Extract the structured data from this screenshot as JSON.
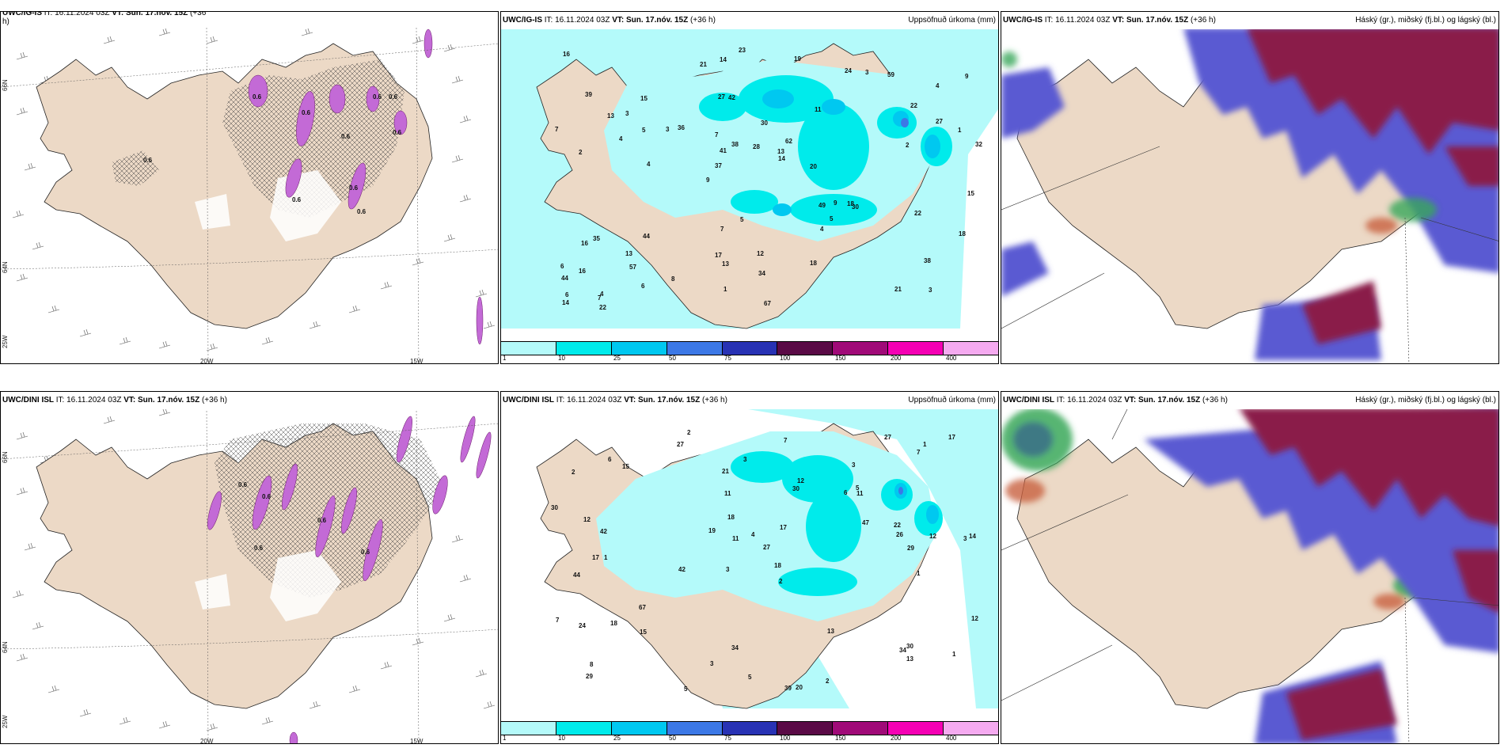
{
  "rows": [
    {
      "model": "UWC/IG-IS",
      "it_label": "IT:",
      "it_value": "16.11.2024 03Z",
      "vt_label": "VT:",
      "vt_value": "Sun. 17.nóv. 15Z",
      "lead": "(+36 h)",
      "first_header_lead": "(+36",
      "first_header_wrap": "h)"
    },
    {
      "model": "UWC/DINI ISL",
      "it_label": "IT:",
      "it_value": "16.11.2024 03Z",
      "vt_label": "VT:",
      "vt_value": "Sun. 17.nóv. 15Z",
      "lead": "(+36 h)"
    }
  ],
  "precip_title": "Uppsöfnuð úrkoma (mm)",
  "cloud_title": "Háský (gr.), miðský (fj.bl.) og lágský (bl.)",
  "precip_legend": {
    "colors": [
      "#b4fafa",
      "#00ebeb",
      "#00c8f0",
      "#3c78e6",
      "#2832b4",
      "#5a0a46",
      "#a00a78",
      "#f500b4",
      "#f5aaf0"
    ],
    "labels": [
      "1",
      "10",
      "25",
      "50",
      "75",
      "100",
      "150",
      "200",
      "400"
    ]
  },
  "axis_labels": {
    "lon_20w": "20W",
    "lon_15w": "15W",
    "lat_66n": "66N",
    "lat_64n": "64N",
    "lat_25w": "25W"
  },
  "precip_numbers_top": [
    "3",
    "2",
    "4",
    "9",
    "11",
    "4",
    "27",
    "30",
    "35",
    "36",
    "44",
    "57",
    "42",
    "62",
    "30",
    "39",
    "14",
    "32",
    "49",
    "27",
    "37",
    "17",
    "41",
    "15",
    "24",
    "44",
    "21",
    "38",
    "18",
    "67",
    "3",
    "4",
    "4",
    "6",
    "1",
    "13",
    "6",
    "13",
    "14",
    "16",
    "22",
    "9",
    "5",
    "18",
    "13",
    "22",
    "14",
    "12",
    "59",
    "23",
    "4",
    "7",
    "3",
    "3",
    "7",
    "19",
    "21",
    "38",
    "18",
    "7",
    "8",
    "9",
    "5",
    "6",
    "16",
    "13",
    "15",
    "7",
    "34",
    "28",
    "16",
    "20",
    "22",
    "1",
    "2",
    "5"
  ],
  "precip_numbers_bottom": [
    "2",
    "3",
    "3",
    "3",
    "2",
    "1",
    "2",
    "6",
    "44",
    "30",
    "27",
    "29",
    "27",
    "42",
    "39",
    "20",
    "34",
    "27",
    "47",
    "67",
    "42",
    "17",
    "14",
    "12",
    "7",
    "12",
    "11",
    "26",
    "30",
    "24",
    "34",
    "12",
    "18",
    "19",
    "13",
    "12",
    "22",
    "3",
    "17",
    "3",
    "8",
    "5",
    "2",
    "6",
    "5",
    "11",
    "13",
    "5",
    "30",
    "18",
    "21",
    "29",
    "17",
    "7",
    "7",
    "15",
    "18",
    "4",
    "1",
    "11",
    "1",
    "1",
    "15"
  ],
  "wind_values_top": [
    "0.6",
    "0.6",
    "0.6",
    "0.6",
    "0.6",
    "0.6",
    "0.6",
    "0.6",
    "0.6",
    "0.6"
  ],
  "wind_values_bottom": [
    "0.6",
    "0.6",
    "0.6",
    "0.6",
    "0.6"
  ]
}
